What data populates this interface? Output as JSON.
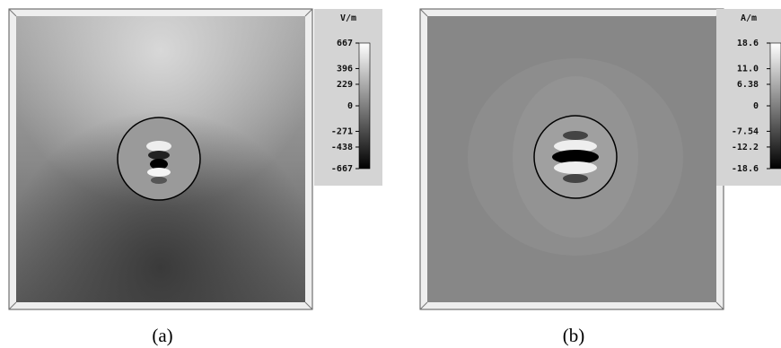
{
  "chart_data": [
    {
      "type": "contour",
      "colorbar_label": "V/m",
      "caption": "(a)",
      "clim": [
        -667,
        667
      ],
      "cticks": [
        667,
        396,
        229,
        0,
        -271,
        -438,
        -667
      ]
    },
    {
      "type": "contour",
      "colorbar_label": "A/m",
      "caption": "(b)",
      "clim": [
        -18.6,
        18.6
      ],
      "cticks": [
        18.6,
        {
          "value": 11,
          "label": "11.0"
        },
        6.38,
        0,
        -7.54,
        -12.2,
        -18.6
      ]
    }
  ]
}
